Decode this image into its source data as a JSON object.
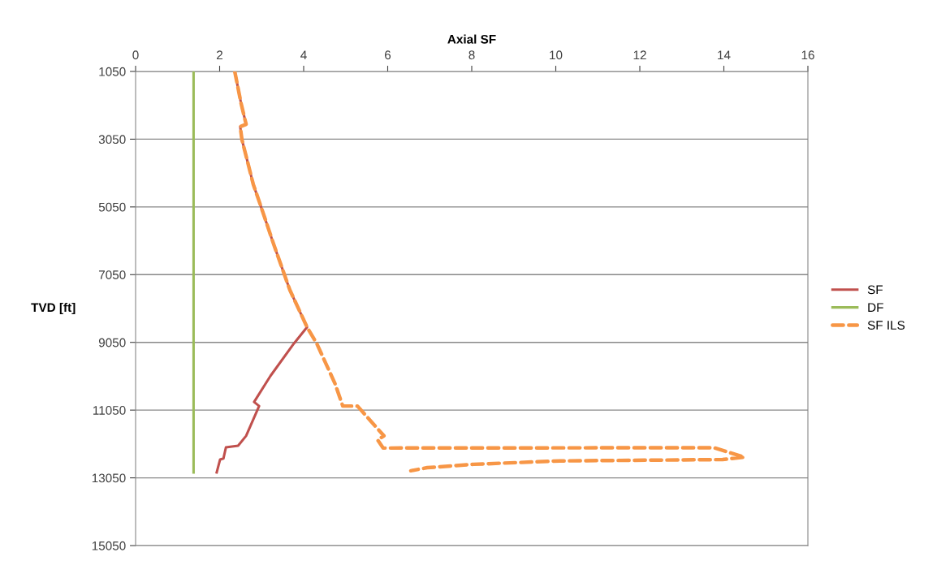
{
  "chart_data": {
    "type": "line",
    "xlabel": "Axial SF",
    "ylabel": "TVD [ft]",
    "xlim": [
      0,
      16
    ],
    "xticks": [
      0,
      2,
      4,
      6,
      8,
      10,
      12,
      14,
      16
    ],
    "ylim": [
      15050,
      1050
    ],
    "yticks": [
      1050,
      3050,
      5050,
      7050,
      9050,
      11050,
      13050,
      15050
    ],
    "grid": "y",
    "legend": "right",
    "series": [
      {
        "name": "SF",
        "color": "#c0504d",
        "line_style": "solid",
        "x": [
          2.36,
          2.51,
          2.63,
          2.49,
          2.53,
          2.8,
          3.0,
          3.28,
          3.67,
          4.08,
          3.77,
          3.21,
          2.82,
          2.94,
          2.63,
          2.44,
          2.15,
          2.09,
          2.01,
          1.93
        ],
        "values": [
          1050,
          1990,
          2610,
          2680,
          3060,
          4380,
          5100,
          6130,
          7500,
          8600,
          9080,
          10040,
          10810,
          10930,
          11810,
          12100,
          12150,
          12480,
          12510,
          12890
        ]
      },
      {
        "name": "DF",
        "color": "#9bbb59",
        "line_style": "solid",
        "x": [
          1.38,
          1.38
        ],
        "values": [
          1050,
          12890
        ]
      },
      {
        "name": "SF ILS",
        "color": "#f79646",
        "line_style": "dashed",
        "x": [
          2.36,
          2.51,
          2.63,
          2.49,
          2.53,
          2.8,
          3.0,
          3.28,
          3.67,
          4.08,
          4.31,
          4.75,
          4.93,
          5.28,
          5.91,
          5.76,
          5.89,
          13.76,
          14.49,
          13.97,
          10.1,
          8.04,
          6.94,
          6.55
        ],
        "values": [
          1050,
          1990,
          2610,
          2680,
          3060,
          4380,
          5100,
          6130,
          7500,
          8600,
          9080,
          10280,
          10930,
          10930,
          11810,
          11930,
          12170,
          12160,
          12440,
          12510,
          12550,
          12650,
          12750,
          12840
        ]
      }
    ]
  }
}
